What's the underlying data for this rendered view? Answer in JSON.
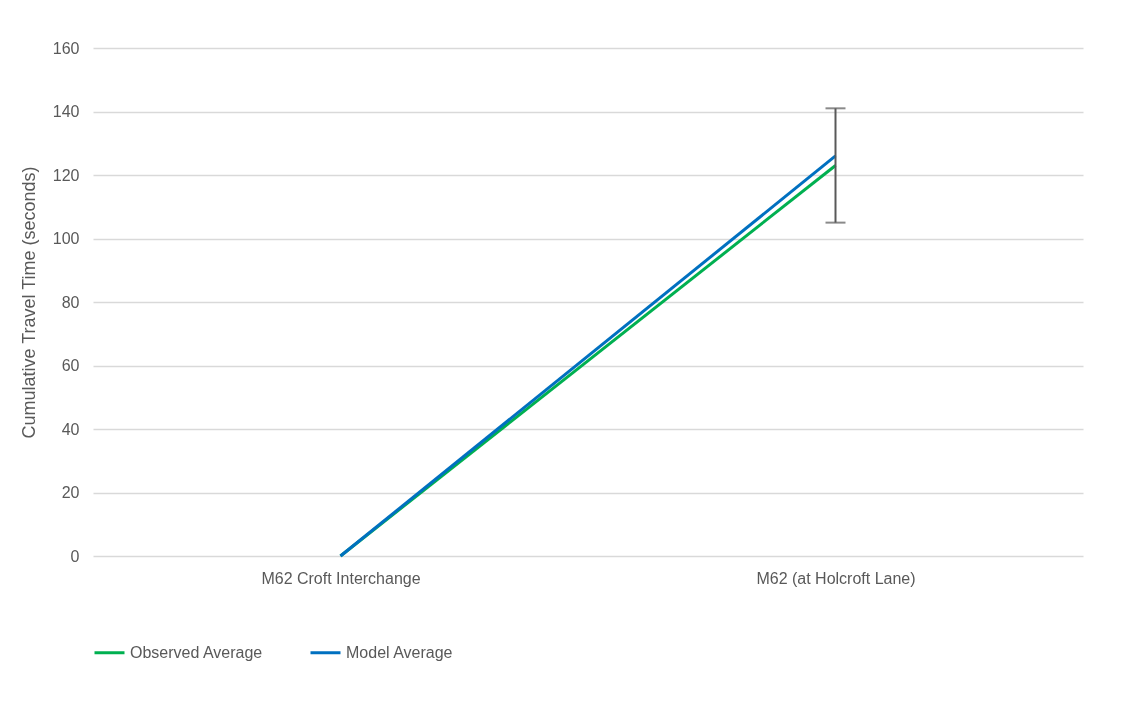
{
  "chart_data": {
    "type": "line",
    "ylabel": "Cumulative Travel Time (seconds)",
    "categories": [
      "M62 Croft Interchange",
      "M62 (at Holcroft Lane)"
    ],
    "series": [
      {
        "name": "Observed Average",
        "color": "#00b050",
        "values": [
          0,
          123
        ],
        "errors": [
          null,
          [
            105,
            141
          ]
        ]
      },
      {
        "name": "Model Average",
        "color": "#0070c0",
        "values": [
          0,
          126
        ]
      }
    ],
    "ylim": [
      0,
      160
    ],
    "yticks": [
      0,
      20,
      40,
      60,
      80,
      100,
      120,
      140,
      160
    ],
    "grid": "y",
    "legend": "bottom",
    "marker": "none",
    "line_style": "solid"
  }
}
